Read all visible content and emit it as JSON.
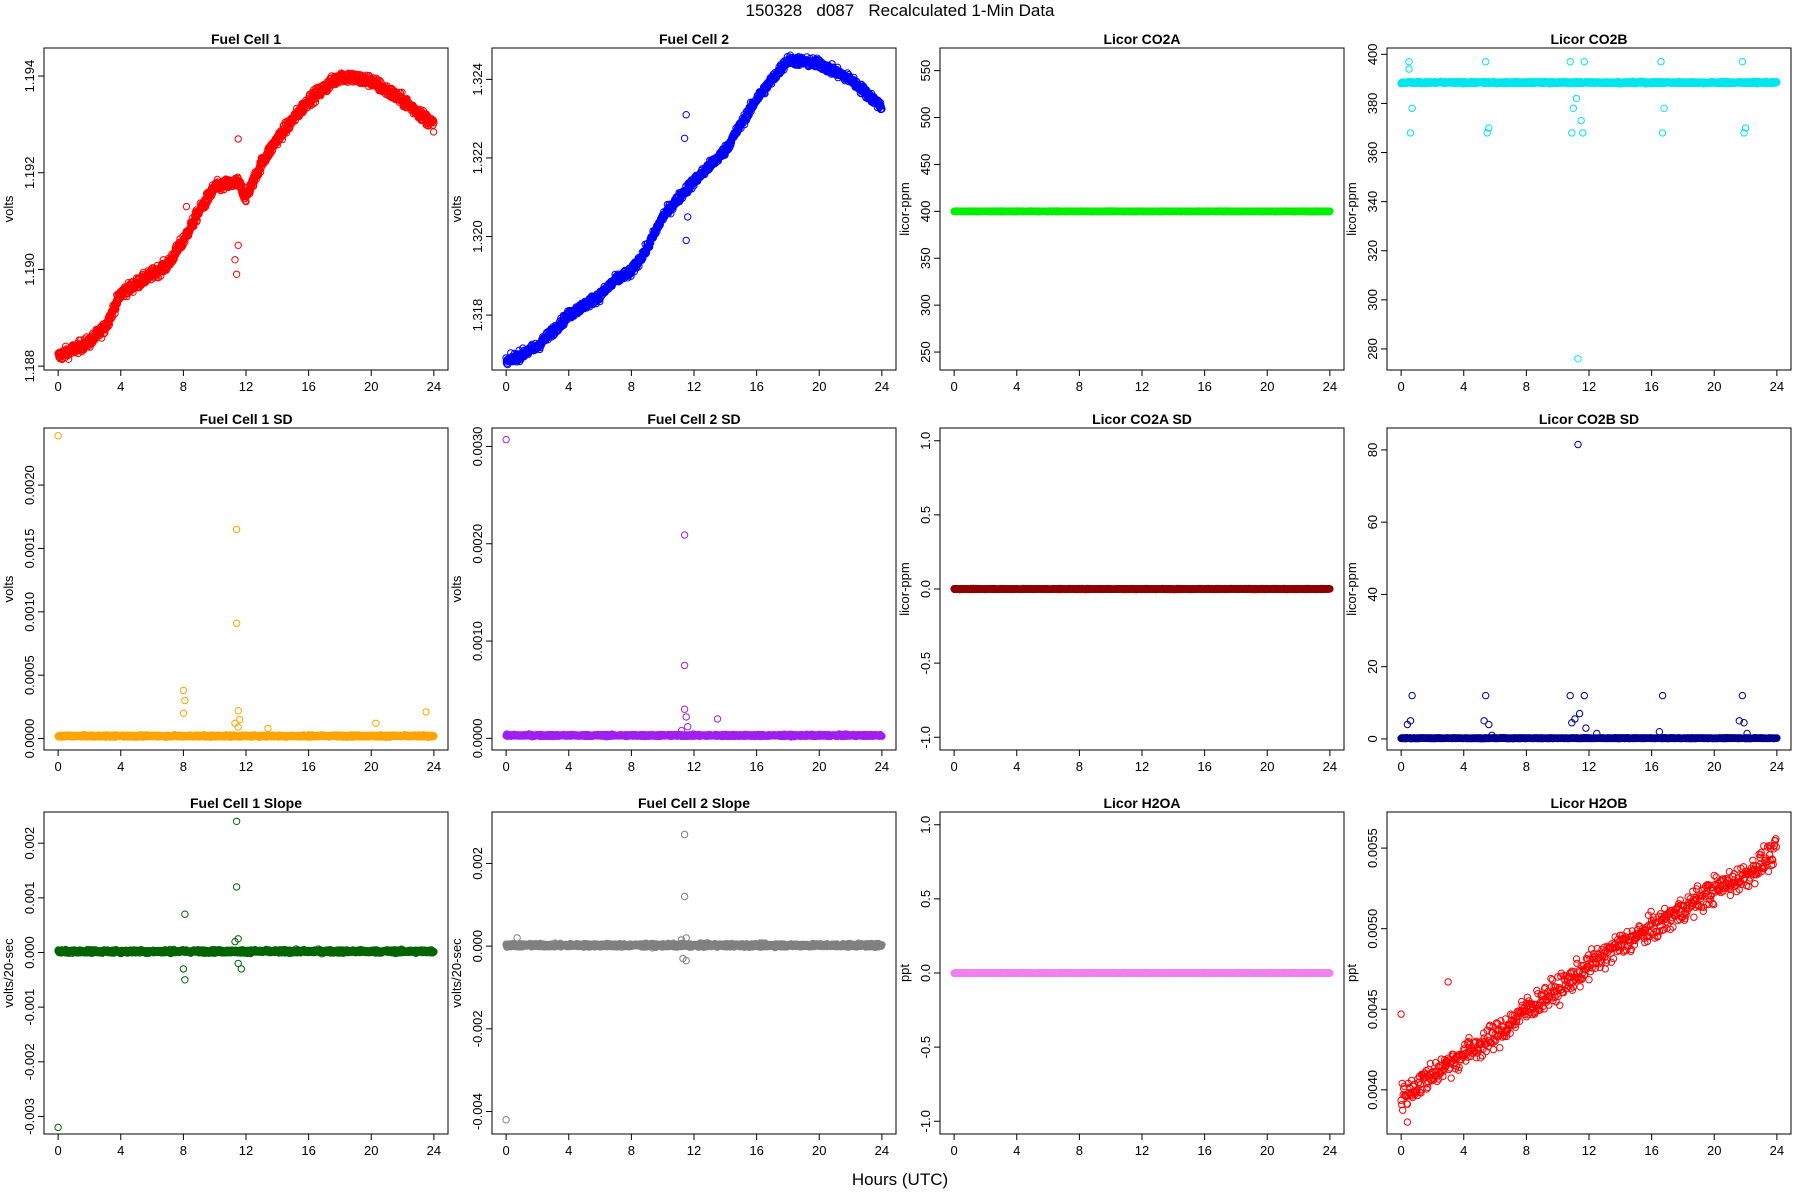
{
  "page": {
    "title": "150328   d087   Recalculated 1-Min Data",
    "xlabel": "Hours (UTC)"
  },
  "chart_data": [
    {
      "type": "scatter",
      "title": "Fuel Cell 1",
      "ylabel": "volts",
      "color": "#ff0000",
      "xlim": [
        0,
        24
      ],
      "ylim": [
        1.188,
        1.1945
      ],
      "xticks": [
        "0",
        "4",
        "8",
        "12",
        "16",
        "20",
        "24"
      ],
      "yticks": [
        "1.188",
        "1.190",
        "1.192",
        "1.194"
      ],
      "series": [
        {
          "shape": "trend",
          "knots": [
            [
              0,
              1.1882
            ],
            [
              2,
              1.1885
            ],
            [
              3,
              1.1888
            ],
            [
              4,
              1.1895
            ],
            [
              6,
              1.1899
            ],
            [
              7,
              1.1901
            ],
            [
              8,
              1.1906
            ],
            [
              9,
              1.1912
            ],
            [
              10,
              1.1917
            ],
            [
              11.5,
              1.1918
            ],
            [
              12,
              1.1915
            ],
            [
              13,
              1.1922
            ],
            [
              14,
              1.1927
            ],
            [
              16,
              1.1935
            ],
            [
              18,
              1.194
            ],
            [
              20,
              1.1939
            ],
            [
              22,
              1.1935
            ],
            [
              24,
              1.193
            ]
          ],
          "noise": 0.00012,
          "outliers": [
            [
              11.5,
              1.1927
            ],
            [
              11.4,
              1.1899
            ],
            [
              11.5,
              1.1905
            ],
            [
              8.2,
              1.1913
            ],
            [
              11.3,
              1.1902
            ]
          ]
        }
      ]
    },
    {
      "type": "scatter",
      "title": "Fuel Cell 2",
      "ylabel": "volts",
      "color": "#0000ff",
      "xlim": [
        0,
        24
      ],
      "ylim": [
        1.3167,
        1.3247
      ],
      "xticks": [
        "0",
        "4",
        "8",
        "12",
        "16",
        "20",
        "24"
      ],
      "yticks": [
        "1.318",
        "1.320",
        "1.322",
        "1.324"
      ],
      "series": [
        {
          "shape": "trend",
          "knots": [
            [
              0,
              1.3168
            ],
            [
              2,
              1.3172
            ],
            [
              4,
              1.318
            ],
            [
              6,
              1.3185
            ],
            [
              7,
              1.3189
            ],
            [
              8,
              1.3191
            ],
            [
              9,
              1.3197
            ],
            [
              10,
              1.3205
            ],
            [
              11.5,
              1.3212
            ],
            [
              12,
              1.3214
            ],
            [
              14,
              1.3222
            ],
            [
              16,
              1.3235
            ],
            [
              18,
              1.3245
            ],
            [
              20,
              1.3244
            ],
            [
              22,
              1.324
            ],
            [
              24,
              1.3233
            ]
          ],
          "noise": 0.00012,
          "outliers": [
            [
              11.5,
              1.3231
            ],
            [
              11.5,
              1.3199
            ],
            [
              11.6,
              1.3205
            ],
            [
              11.4,
              1.3225
            ]
          ]
        }
      ]
    },
    {
      "type": "scatter",
      "title": "Licor CO2A",
      "ylabel": "licor-ppm",
      "color": "#00ee00",
      "xlim": [
        0,
        24
      ],
      "ylim": [
        235,
        570
      ],
      "xticks": [
        "0",
        "4",
        "8",
        "12",
        "16",
        "20",
        "24"
      ],
      "yticks": [
        "250",
        "300",
        "350",
        "400",
        "450",
        "500",
        "550"
      ],
      "series": [
        {
          "shape": "flat",
          "value": 400,
          "noise": 0.3,
          "outliers": []
        }
      ]
    },
    {
      "type": "scatter",
      "title": "Licor CO2B",
      "ylabel": "licor-ppm",
      "color": "#00e5ee",
      "xlim": [
        0,
        24
      ],
      "ylim": [
        273,
        401
      ],
      "xticks": [
        "0",
        "4",
        "8",
        "12",
        "16",
        "20",
        "24"
      ],
      "yticks": [
        "280",
        "300",
        "320",
        "340",
        "360",
        "380",
        "400"
      ],
      "series": [
        {
          "shape": "flat",
          "value": 388.5,
          "noise": 0.4,
          "outliers": [
            [
              0.5,
              397
            ],
            [
              0.6,
              368
            ],
            [
              0.7,
              378
            ],
            [
              0.5,
              394
            ],
            [
              5.4,
              397
            ],
            [
              5.5,
              368
            ],
            [
              5.6,
              370
            ],
            [
              10.8,
              397
            ],
            [
              10.9,
              368
            ],
            [
              11.0,
              378
            ],
            [
              11.3,
              276
            ],
            [
              11.5,
              373
            ],
            [
              11.6,
              368
            ],
            [
              11.7,
              397
            ],
            [
              11.2,
              382
            ],
            [
              16.6,
              397
            ],
            [
              16.7,
              368
            ],
            [
              16.8,
              378
            ],
            [
              21.8,
              397
            ],
            [
              21.9,
              368
            ],
            [
              22.0,
              370
            ]
          ]
        }
      ]
    },
    {
      "type": "scatter",
      "title": "Fuel Cell 1 SD",
      "ylabel": "volts",
      "color": "#ffa500",
      "xlim": [
        0,
        24
      ],
      "ylim": [
        -6e-05,
        0.00242
      ],
      "xticks": [
        "0",
        "4",
        "8",
        "12",
        "16",
        "20",
        "24"
      ],
      "yticks": [
        "0.0000",
        "0.0005",
        "0.0010",
        "0.0015",
        "0.0020"
      ],
      "series": [
        {
          "shape": "flat",
          "value": 2e-05,
          "noise": 8e-06,
          "outliers": [
            [
              0.0,
              0.00239
            ],
            [
              11.4,
              0.00165
            ],
            [
              11.4,
              0.00091
            ],
            [
              8.0,
              0.00038
            ],
            [
              8.1,
              0.0003
            ],
            [
              8.0,
              0.0002
            ],
            [
              11.5,
              0.00022
            ],
            [
              11.6,
              0.00015
            ],
            [
              11.3,
              0.00012
            ],
            [
              11.5,
              9e-05
            ],
            [
              23.5,
              0.00021
            ],
            [
              20.3,
              0.00012
            ],
            [
              13.4,
              8e-05
            ]
          ]
        }
      ]
    },
    {
      "type": "scatter",
      "title": "Fuel Cell 2 SD",
      "ylabel": "volts",
      "color": "#a020f0",
      "xlim": [
        0,
        24
      ],
      "ylim": [
        -8e-05,
        0.00315
      ],
      "xticks": [
        "0",
        "4",
        "8",
        "12",
        "16",
        "20",
        "24"
      ],
      "yticks": [
        "0.0000",
        "0.0010",
        "0.0020",
        "0.0030"
      ],
      "series": [
        {
          "shape": "flat",
          "value": 3e-05,
          "noise": 1e-05,
          "outliers": [
            [
              0.0,
              0.00307
            ],
            [
              11.4,
              0.00209
            ],
            [
              11.4,
              0.00075
            ],
            [
              11.4,
              0.0003
            ],
            [
              11.5,
              0.00022
            ],
            [
              13.5,
              0.0002
            ],
            [
              11.6,
              0.00012
            ],
            [
              11.2,
              8e-05
            ]
          ]
        }
      ]
    },
    {
      "type": "scatter",
      "title": "Licor CO2A SD",
      "ylabel": "licor-ppm",
      "color": "#8b0000",
      "xlim": [
        0,
        24
      ],
      "ylim": [
        -1.06,
        1.06
      ],
      "xticks": [
        "0",
        "4",
        "8",
        "12",
        "16",
        "20",
        "24"
      ],
      "yticks": [
        "-1.0",
        "-0.5",
        "0.0",
        "0.5",
        "1.0"
      ],
      "series": [
        {
          "shape": "flat",
          "value": 0,
          "noise": 0.003,
          "outliers": []
        }
      ]
    },
    {
      "type": "scatter",
      "title": "Licor CO2B SD",
      "ylabel": "licor-ppm",
      "color": "#00008b",
      "xlim": [
        0,
        24
      ],
      "ylim": [
        -2,
        85
      ],
      "xticks": [
        "0",
        "4",
        "8",
        "12",
        "16",
        "20",
        "24"
      ],
      "yticks": [
        "0",
        "20",
        "40",
        "60",
        "80"
      ],
      "series": [
        {
          "shape": "flat",
          "value": 0.2,
          "noise": 0.1,
          "outliers": [
            [
              11.3,
              81.5
            ],
            [
              0.7,
              12
            ],
            [
              0.6,
              5
            ],
            [
              0.4,
              4
            ],
            [
              5.4,
              12
            ],
            [
              5.3,
              5
            ],
            [
              5.6,
              4
            ],
            [
              5.8,
              1
            ],
            [
              10.8,
              12
            ],
            [
              10.9,
              4.5
            ],
            [
              11.1,
              5.5
            ],
            [
              11.4,
              7
            ],
            [
              11.7,
              12
            ],
            [
              11.8,
              3
            ],
            [
              12.5,
              1.5
            ],
            [
              16.7,
              12
            ],
            [
              16.5,
              2
            ],
            [
              21.8,
              12
            ],
            [
              21.6,
              5
            ],
            [
              21.9,
              4.5
            ],
            [
              22.1,
              1.5
            ]
          ]
        }
      ]
    },
    {
      "type": "scatter",
      "title": "Fuel Cell 1 Slope",
      "ylabel": "volts/20-sec",
      "color": "#006400",
      "xlim": [
        0,
        24
      ],
      "ylim": [
        -0.00325,
        0.0025
      ],
      "xticks": [
        "0",
        "4",
        "8",
        "12",
        "16",
        "20",
        "24"
      ],
      "yticks": [
        "-0.003",
        "-0.002",
        "-0.001",
        "0.000",
        "0.001",
        "0.002"
      ],
      "series": [
        {
          "shape": "flat",
          "value": 2e-05,
          "noise": 3e-05,
          "outliers": [
            [
              0.0,
              -0.0032
            ],
            [
              11.4,
              0.0024
            ],
            [
              11.4,
              0.0012
            ],
            [
              8.1,
              0.0007
            ],
            [
              8.1,
              -0.0005
            ],
            [
              8.0,
              -0.0003
            ],
            [
              11.5,
              0.00025
            ],
            [
              11.7,
              -0.0003
            ],
            [
              11.5,
              -0.0002
            ],
            [
              11.3,
              0.0002
            ]
          ]
        }
      ]
    },
    {
      "type": "scatter",
      "title": "Fuel Cell 2 Slope",
      "ylabel": "volts/20-sec",
      "color": "#808080",
      "xlim": [
        0,
        24
      ],
      "ylim": [
        -0.00445,
        0.00315
      ],
      "xticks": [
        "0",
        "4",
        "8",
        "12",
        "16",
        "20",
        "24"
      ],
      "yticks": [
        "-0.004",
        "-0.002",
        "0.000",
        "0.002"
      ],
      "series": [
        {
          "shape": "flat",
          "value": 2e-05,
          "noise": 4e-05,
          "outliers": [
            [
              0.0,
              -0.0042
            ],
            [
              11.4,
              0.0027
            ],
            [
              11.4,
              0.0012
            ],
            [
              11.5,
              -0.00035
            ],
            [
              11.3,
              -0.0003
            ],
            [
              11.5,
              0.0002
            ],
            [
              11.2,
              0.00015
            ],
            [
              0.7,
              0.0002
            ]
          ]
        }
      ]
    },
    {
      "type": "scatter",
      "title": "Licor H2OA",
      "ylabel": "ppt",
      "color": "#ee82ee",
      "xlim": [
        0,
        24
      ],
      "ylim": [
        -1.06,
        1.06
      ],
      "xticks": [
        "0",
        "4",
        "8",
        "12",
        "16",
        "20",
        "24"
      ],
      "yticks": [
        "-1.0",
        "-0.5",
        "0.0",
        "0.5",
        "1.0"
      ],
      "series": [
        {
          "shape": "flat",
          "value": 0,
          "noise": 0.002,
          "outliers": []
        }
      ]
    },
    {
      "type": "scatter",
      "title": "Licor H2OB",
      "ylabel": "ppt",
      "color": "#ff0000",
      "xlim": [
        0,
        24
      ],
      "ylim": [
        0.00375,
        0.0057
      ],
      "xticks": [
        "0",
        "4",
        "8",
        "12",
        "16",
        "20",
        "24"
      ],
      "yticks": [
        "0.0040",
        "0.0045",
        "0.0050",
        "0.0055"
      ],
      "series": [
        {
          "shape": "trend",
          "knots": [
            [
              0,
              0.00395
            ],
            [
              2,
              0.0041
            ],
            [
              4,
              0.00422
            ],
            [
              6,
              0.00433
            ],
            [
              8,
              0.0045
            ],
            [
              10,
              0.00462
            ],
            [
              12,
              0.00477
            ],
            [
              14,
              0.0049
            ],
            [
              16,
              0.005
            ],
            [
              18,
              0.00512
            ],
            [
              20,
              0.00524
            ],
            [
              22,
              0.00533
            ],
            [
              24,
              0.00548
            ]
          ],
          "noise": 8e-05,
          "step": 2,
          "outliers": [
            [
              0.0,
              0.00447
            ],
            [
              3.0,
              0.00467
            ],
            [
              0.4,
              0.0038
            ]
          ]
        }
      ]
    }
  ]
}
